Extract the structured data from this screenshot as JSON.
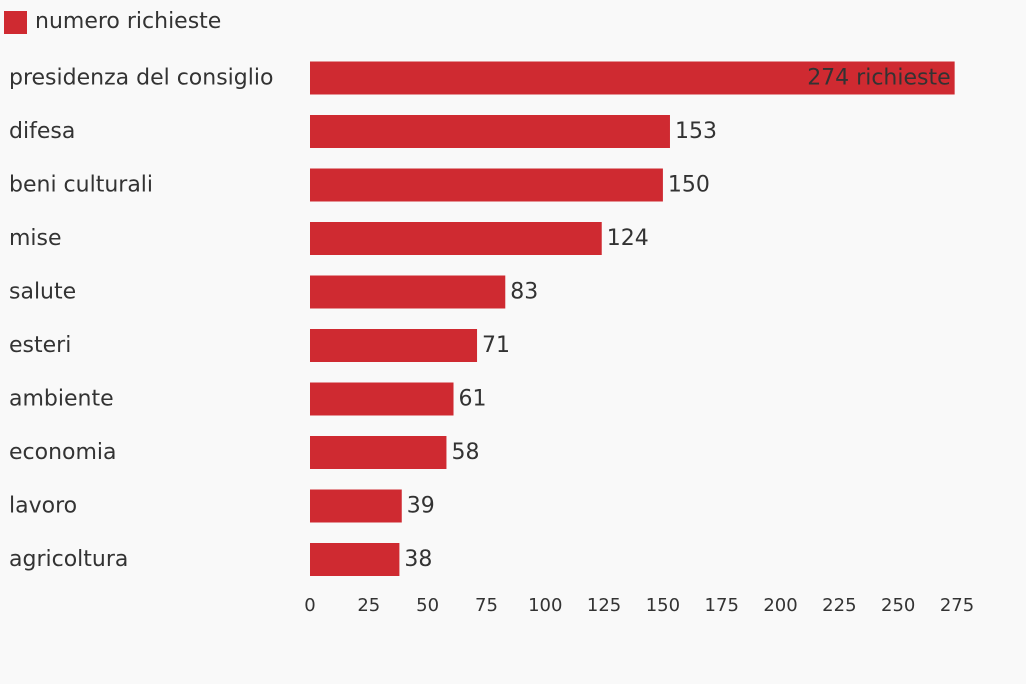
{
  "chart_data": {
    "type": "bar",
    "orientation": "horizontal",
    "legend": {
      "label": "numero richieste",
      "position": "top-left"
    },
    "categories": [
      "presidenza del consiglio",
      "difesa",
      "beni culturali",
      "mise",
      "salute",
      "esteri",
      "ambiente",
      "economia",
      "lavoro",
      "agricoltura"
    ],
    "series": [
      {
        "name": "numero richieste",
        "values": [
          274,
          153,
          150,
          124,
          83,
          71,
          61,
          58,
          39,
          38
        ]
      }
    ],
    "value_labels": [
      "274 richieste",
      "153",
      "150",
      "124",
      "83",
      "71",
      "61",
      "58",
      "39",
      "38"
    ],
    "x_ticks": [
      "0",
      "25",
      "50",
      "75",
      "100",
      "125",
      "150",
      "175",
      "200",
      "225",
      "250",
      "275"
    ],
    "xlim": [
      0,
      275
    ],
    "grid": false,
    "colors": {
      "bar": "#cf2a31",
      "text": "#333333",
      "background": "#f9f9f9"
    }
  }
}
